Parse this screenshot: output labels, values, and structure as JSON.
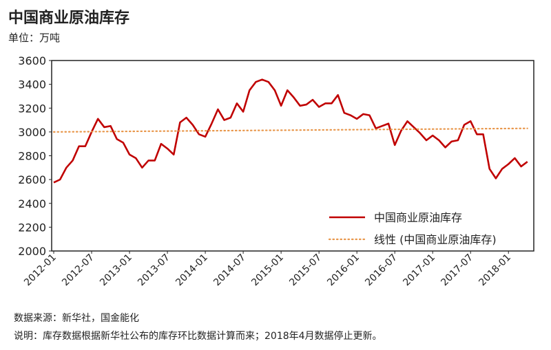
{
  "title": "中国商业原油库存",
  "unit": "单位：万吨",
  "source": "数据来源：新华社，国金能化",
  "note": "说明：库存数据根据新华社公布的库存环比数据计算而来；2018年4月数据停止更新。",
  "chart_data": {
    "type": "line",
    "title": "中国商业原油库存",
    "ylabel": "万吨",
    "ylim": [
      2000,
      3600
    ],
    "yticks": [
      "2000",
      "2200",
      "2400",
      "2600",
      "2800",
      "3000",
      "3200",
      "3400",
      "3600"
    ],
    "xticks": [
      "2012-01",
      "2012-07",
      "2013-01",
      "2013-07",
      "2014-01",
      "2014-07",
      "2015-01",
      "2015-07",
      "2016-01",
      "2016-07",
      "2017-01",
      "2017-07",
      "2018-01"
    ],
    "start": "2012-01",
    "end": "2018-04",
    "legend_position": "bottom-right",
    "series": [
      {
        "name": "中国商业原油库存",
        "color": "#c00000",
        "values": [
          2575,
          2600,
          2700,
          2760,
          2880,
          2880,
          3000,
          3110,
          3040,
          3050,
          2940,
          2910,
          2810,
          2780,
          2700,
          2760,
          2760,
          2900,
          2860,
          2810,
          3080,
          3120,
          3060,
          2980,
          2960,
          3070,
          3190,
          3100,
          3120,
          3240,
          3170,
          3350,
          3420,
          3440,
          3420,
          3350,
          3220,
          3350,
          3290,
          3220,
          3230,
          3270,
          3210,
          3240,
          3240,
          3310,
          3160,
          3140,
          3110,
          3150,
          3140,
          3030,
          3050,
          3070,
          2890,
          3010,
          3090,
          3040,
          2990,
          2930,
          2970,
          2930,
          2870,
          2920,
          2930,
          3060,
          3090,
          2980,
          2980,
          2690,
          2610,
          2690,
          2730,
          2780,
          2710,
          2750
        ]
      },
      {
        "name": "线性 (中国商业原油库存)",
        "color": "#e8964a",
        "trend": [
          3000,
          3030
        ]
      }
    ]
  }
}
